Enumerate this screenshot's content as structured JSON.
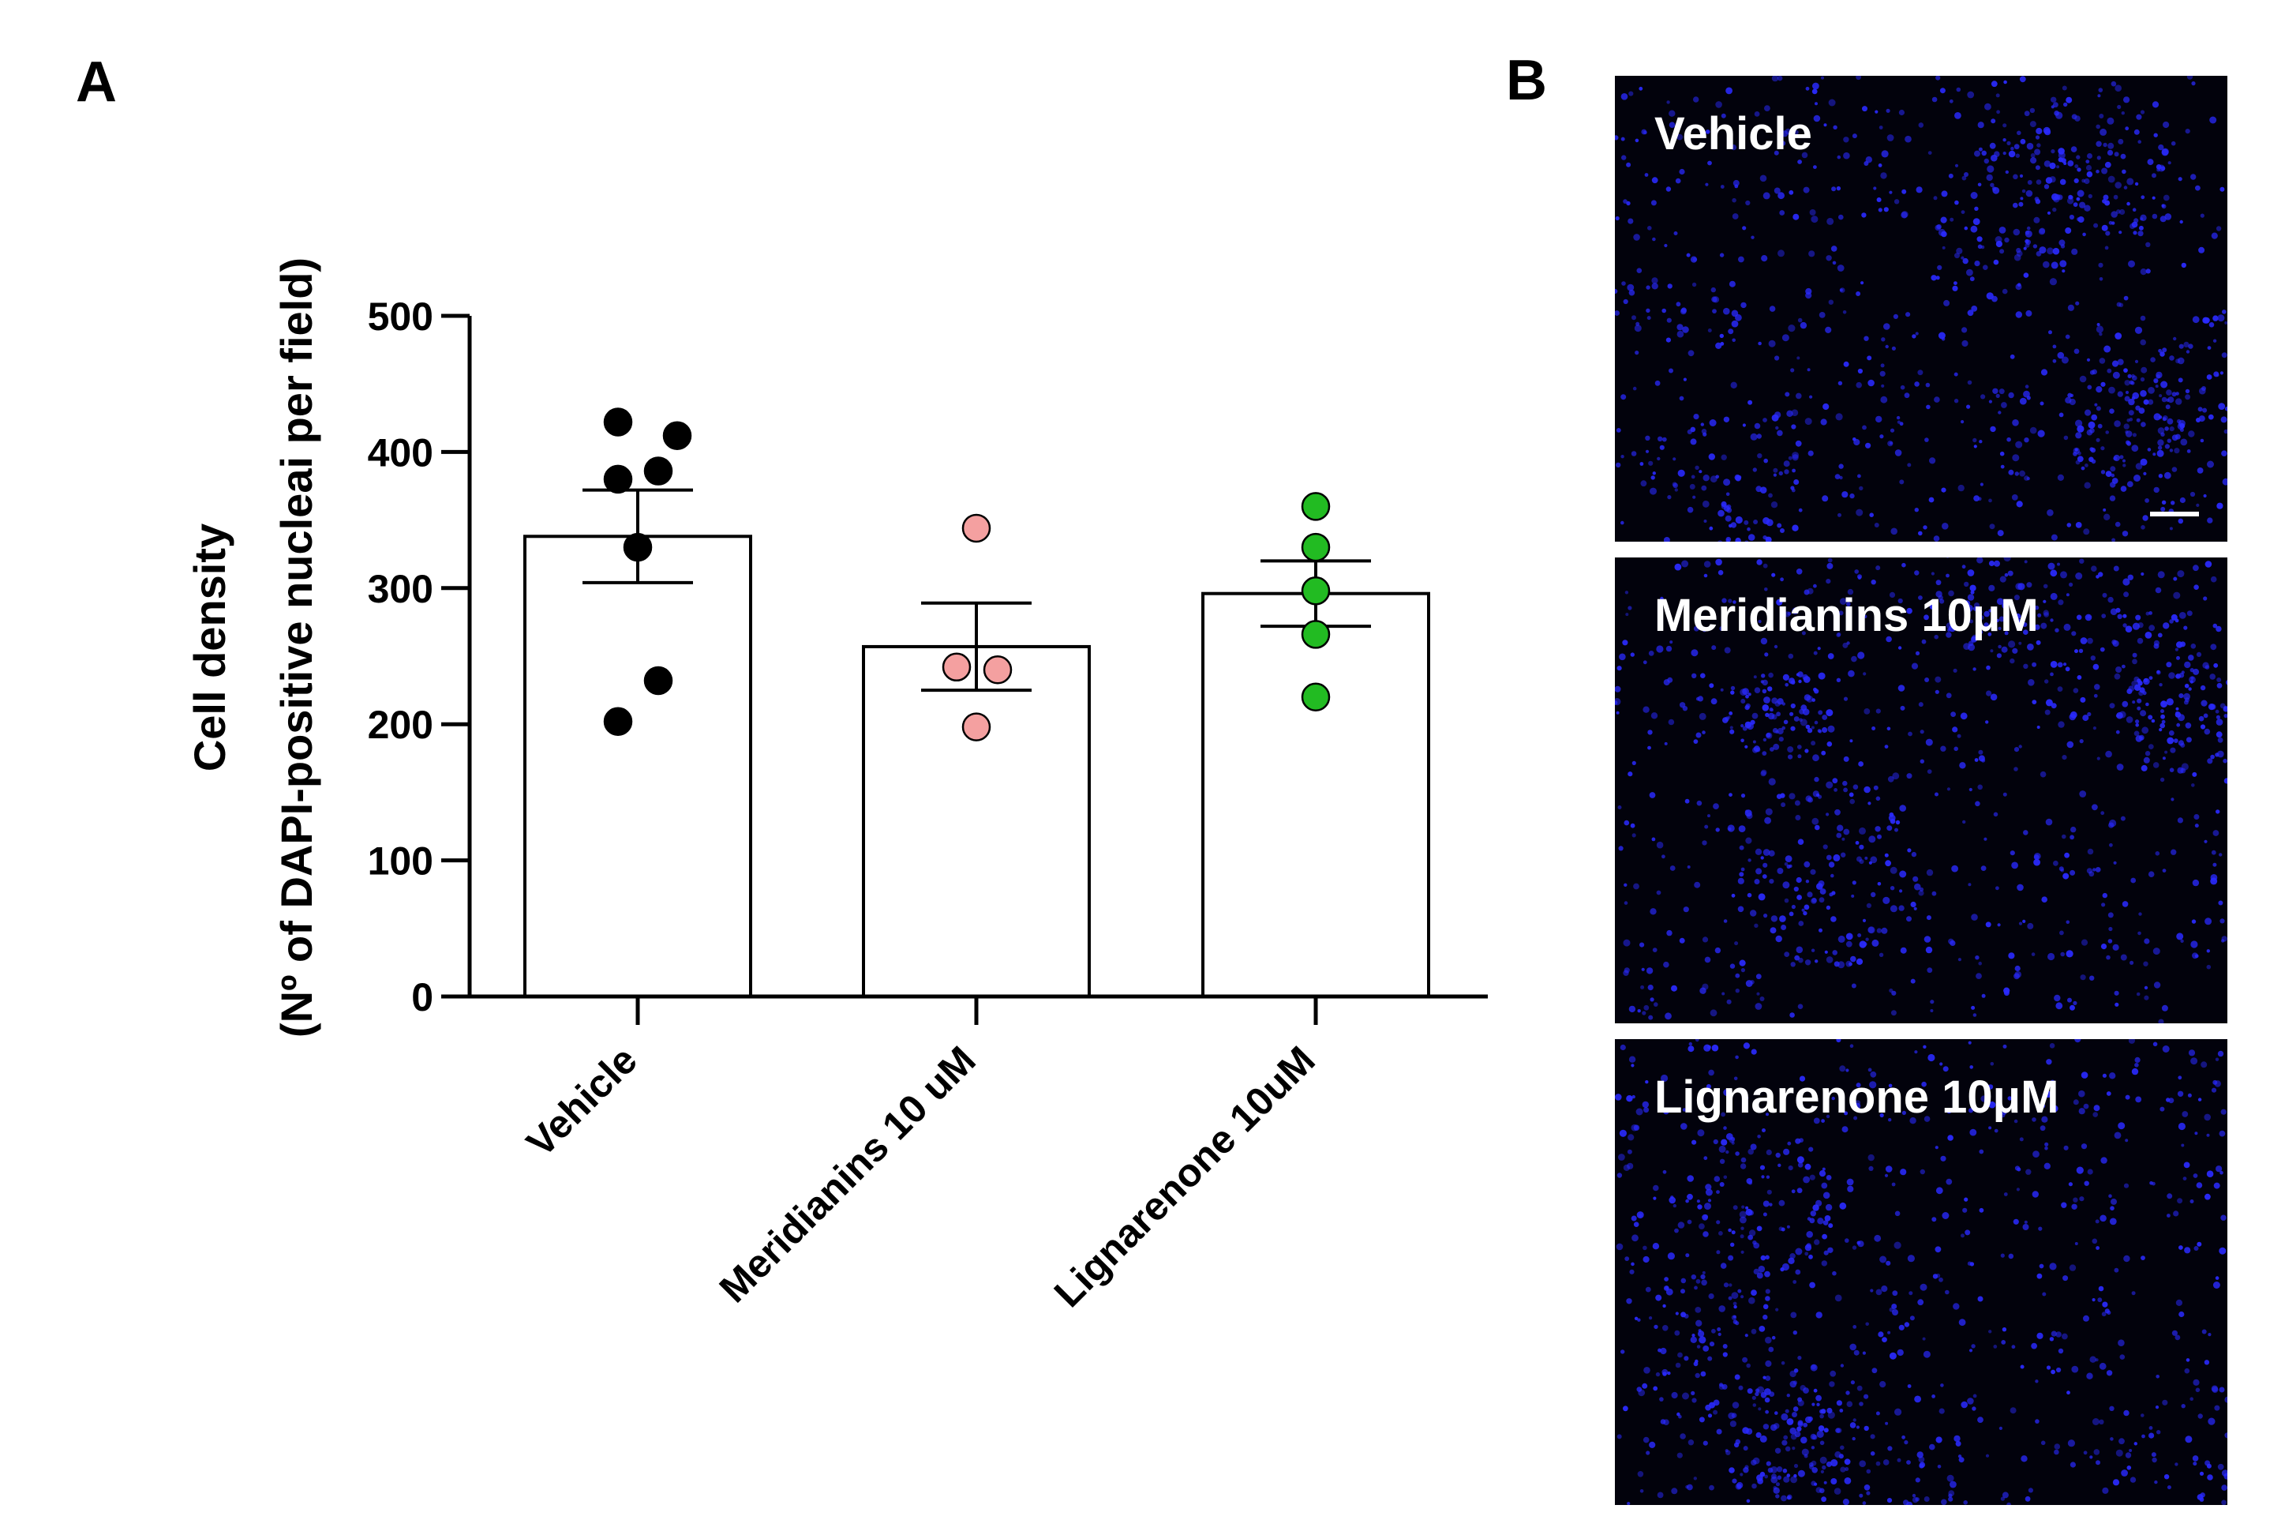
{
  "panel_labels": {
    "a": "A",
    "b": "B"
  },
  "chart_data": {
    "type": "bar",
    "ylabel_line1": "Cell density",
    "ylabel_line2": "(Nº of DAPI-positive nucleai per field)",
    "ylim": [
      0,
      500
    ],
    "yticks": [
      0,
      100,
      200,
      300,
      400,
      500
    ],
    "categories": [
      "Vehicle",
      "Meridianins 10 uM",
      "Lignarenone 10uM"
    ],
    "means": [
      338,
      257,
      296
    ],
    "sem": [
      34,
      32,
      24
    ],
    "points": [
      [
        422,
        412,
        386,
        380,
        330,
        232,
        202
      ],
      [
        344,
        242,
        240,
        198
      ],
      [
        360,
        330,
        298,
        266,
        220
      ]
    ],
    "point_colors": [
      "#000000",
      "#f4a0a0",
      "#22bb22"
    ],
    "bar_fill": "#ffffff",
    "grid": false
  },
  "images": [
    {
      "label": "Vehicle",
      "scale_bar": true
    },
    {
      "label": "Meridianins 10μM",
      "scale_bar": false
    },
    {
      "label": "Lignarenone 10μM",
      "scale_bar": false
    }
  ],
  "colors": {
    "nuclei": "#2a2aff",
    "image_background": "#02020c"
  }
}
